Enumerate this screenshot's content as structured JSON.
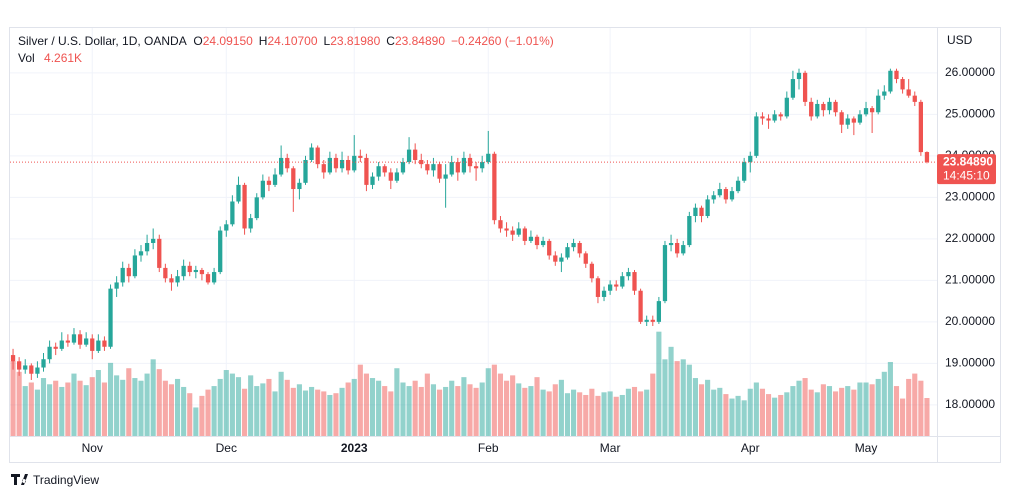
{
  "chart_data": {
    "type": "candlestick",
    "legend": {
      "symbol": "Silver / U.S. Dollar, 1D, OANDA",
      "ohlc": [
        {
          "key": "O",
          "value": "24.09150"
        },
        {
          "key": "H",
          "value": "24.10700"
        },
        {
          "key": "L",
          "value": "23.81980"
        },
        {
          "key": "C",
          "value": "23.84890"
        }
      ],
      "change": "−0.24260 (−1.01%)",
      "volume_key": "Vol",
      "volume_value": "4.261K"
    },
    "currency": "USD",
    "last_price_label": "23.84890",
    "countdown": "14:45:10",
    "up_color": "#26a69a",
    "down_color": "#ef5350",
    "grid": true,
    "ylim": [
      17.25,
      27.08
    ],
    "yticks": [
      {
        "value": 18,
        "label": "18.00000"
      },
      {
        "value": 19,
        "label": "19.00000"
      },
      {
        "value": 20,
        "label": "20.00000"
      },
      {
        "value": 21,
        "label": "21.00000"
      },
      {
        "value": 22,
        "label": "22.00000"
      },
      {
        "value": 23,
        "label": "23.00000"
      },
      {
        "value": 24,
        "label": "24.00000"
      },
      {
        "value": 25,
        "label": "25.00000"
      },
      {
        "value": 26,
        "label": "26.00000"
      }
    ],
    "volume_lim": [
      0,
      12
    ],
    "categories": [
      null,
      null,
      null,
      null,
      null,
      null,
      null,
      null,
      null,
      null,
      null,
      null,
      null,
      "Nov",
      null,
      null,
      null,
      null,
      null,
      null,
      null,
      null,
      null,
      null,
      null,
      null,
      null,
      null,
      null,
      null,
      null,
      null,
      null,
      null,
      null,
      "Dec",
      null,
      null,
      null,
      null,
      null,
      null,
      null,
      null,
      null,
      null,
      null,
      null,
      null,
      null,
      null,
      null,
      null,
      null,
      null,
      null,
      "2023",
      null,
      null,
      null,
      null,
      null,
      null,
      null,
      null,
      null,
      null,
      null,
      null,
      null,
      null,
      null,
      null,
      null,
      null,
      null,
      null,
      null,
      "Feb",
      null,
      null,
      null,
      null,
      null,
      null,
      null,
      null,
      null,
      null,
      null,
      null,
      null,
      null,
      null,
      null,
      null,
      null,
      null,
      "Mar",
      null,
      null,
      null,
      null,
      null,
      null,
      null,
      null,
      null,
      null,
      null,
      null,
      null,
      null,
      null,
      null,
      null,
      null,
      null,
      null,
      null,
      null,
      "Apr",
      null,
      null,
      null,
      null,
      null,
      null,
      null,
      null,
      null,
      null,
      null,
      null,
      null,
      null,
      null,
      null,
      null,
      null,
      "May",
      null,
      null,
      null,
      null,
      null,
      null,
      null,
      null,
      null,
      null
    ],
    "candles": [
      [
        19.2,
        19.35,
        18.85,
        19.05
      ],
      [
        19.05,
        19.15,
        18.7,
        18.85
      ],
      [
        18.85,
        19.1,
        18.75,
        18.95
      ],
      [
        18.95,
        19.0,
        18.6,
        18.75
      ],
      [
        18.75,
        19.05,
        18.65,
        18.9
      ],
      [
        18.9,
        19.25,
        18.8,
        19.1
      ],
      [
        19.1,
        19.55,
        19.0,
        19.4
      ],
      [
        19.4,
        19.5,
        19.2,
        19.35
      ],
      [
        19.35,
        19.75,
        19.3,
        19.55
      ],
      [
        19.55,
        19.7,
        19.4,
        19.5
      ],
      [
        19.5,
        19.85,
        19.45,
        19.7
      ],
      [
        19.7,
        19.8,
        19.35,
        19.45
      ],
      [
        19.45,
        19.75,
        19.4,
        19.6
      ],
      [
        19.6,
        19.7,
        19.1,
        19.3
      ],
      [
        19.3,
        19.7,
        19.25,
        19.55
      ],
      [
        19.55,
        19.65,
        19.3,
        19.4
      ],
      [
        19.4,
        20.9,
        19.35,
        20.8
      ],
      [
        20.8,
        21.1,
        20.6,
        20.95
      ],
      [
        20.95,
        21.45,
        20.85,
        21.3
      ],
      [
        21.3,
        21.4,
        20.95,
        21.1
      ],
      [
        21.1,
        21.75,
        21.05,
        21.6
      ],
      [
        21.6,
        21.85,
        21.45,
        21.7
      ],
      [
        21.7,
        22.1,
        21.6,
        21.9
      ],
      [
        21.9,
        22.25,
        21.75,
        22.0
      ],
      [
        22.0,
        22.1,
        21.2,
        21.3
      ],
      [
        21.3,
        21.4,
        20.95,
        21.05
      ],
      [
        21.05,
        21.15,
        20.75,
        20.95
      ],
      [
        20.95,
        21.25,
        20.85,
        21.1
      ],
      [
        21.1,
        21.5,
        21.0,
        21.35
      ],
      [
        21.35,
        21.45,
        21.1,
        21.2
      ],
      [
        21.2,
        21.35,
        21.05,
        21.25
      ],
      [
        21.25,
        21.3,
        21.0,
        21.15
      ],
      [
        21.15,
        21.2,
        20.9,
        20.95
      ],
      [
        20.95,
        21.3,
        20.9,
        21.2
      ],
      [
        21.2,
        22.3,
        21.15,
        22.2
      ],
      [
        22.2,
        22.45,
        22.05,
        22.35
      ],
      [
        22.35,
        23.05,
        22.3,
        22.9
      ],
      [
        22.9,
        23.5,
        22.85,
        23.3
      ],
      [
        23.3,
        23.35,
        22.1,
        22.25
      ],
      [
        22.25,
        22.6,
        22.15,
        22.5
      ],
      [
        22.5,
        23.1,
        22.45,
        23.0
      ],
      [
        23.0,
        23.55,
        22.95,
        23.4
      ],
      [
        23.4,
        23.5,
        23.15,
        23.3
      ],
      [
        23.3,
        23.7,
        23.25,
        23.55
      ],
      [
        23.55,
        24.25,
        23.5,
        23.95
      ],
      [
        23.95,
        24.05,
        23.6,
        23.7
      ],
      [
        23.7,
        23.75,
        22.65,
        23.2
      ],
      [
        23.2,
        23.45,
        22.95,
        23.35
      ],
      [
        23.35,
        24.0,
        23.3,
        23.9
      ],
      [
        23.9,
        24.3,
        23.85,
        24.2
      ],
      [
        24.2,
        24.25,
        23.7,
        23.8
      ],
      [
        23.8,
        23.9,
        23.45,
        23.6
      ],
      [
        23.6,
        24.1,
        23.55,
        23.95
      ],
      [
        23.95,
        24.05,
        23.6,
        23.7
      ],
      [
        23.7,
        24.1,
        23.6,
        23.9
      ],
      [
        23.9,
        24.0,
        23.55,
        23.65
      ],
      [
        23.65,
        24.5,
        23.6,
        24.0
      ],
      [
        24.0,
        24.15,
        23.85,
        23.95
      ],
      [
        23.95,
        24.05,
        23.15,
        23.3
      ],
      [
        23.3,
        23.6,
        23.2,
        23.5
      ],
      [
        23.5,
        23.85,
        23.4,
        23.75
      ],
      [
        23.75,
        23.8,
        23.5,
        23.6
      ],
      [
        23.6,
        23.7,
        23.2,
        23.4
      ],
      [
        23.4,
        23.7,
        23.35,
        23.6
      ],
      [
        23.6,
        23.95,
        23.55,
        23.85
      ],
      [
        23.85,
        24.45,
        23.8,
        24.15
      ],
      [
        24.15,
        24.3,
        23.8,
        23.9
      ],
      [
        23.9,
        24.05,
        23.7,
        23.8
      ],
      [
        23.8,
        23.9,
        23.55,
        23.65
      ],
      [
        23.65,
        23.95,
        23.5,
        23.8
      ],
      [
        23.8,
        23.85,
        23.35,
        23.45
      ],
      [
        23.45,
        23.8,
        22.75,
        23.55
      ],
      [
        23.55,
        24.0,
        23.5,
        23.85
      ],
      [
        23.85,
        23.95,
        23.4,
        23.6
      ],
      [
        23.6,
        24.1,
        23.55,
        23.95
      ],
      [
        23.95,
        24.05,
        23.6,
        23.75
      ],
      [
        23.75,
        23.85,
        23.4,
        23.7
      ],
      [
        23.7,
        24.0,
        23.6,
        23.85
      ],
      [
        23.85,
        24.6,
        23.8,
        24.05
      ],
      [
        24.05,
        24.1,
        22.35,
        22.45
      ],
      [
        22.45,
        22.55,
        22.15,
        22.25
      ],
      [
        22.25,
        22.4,
        22.05,
        22.2
      ],
      [
        22.2,
        22.3,
        21.95,
        22.1
      ],
      [
        22.1,
        22.4,
        22.05,
        22.25
      ],
      [
        22.25,
        22.3,
        21.85,
        21.95
      ],
      [
        21.95,
        22.2,
        21.9,
        22.05
      ],
      [
        22.05,
        22.1,
        21.75,
        21.85
      ],
      [
        21.85,
        22.05,
        21.8,
        21.95
      ],
      [
        21.95,
        22.0,
        21.5,
        21.6
      ],
      [
        21.6,
        21.7,
        21.35,
        21.45
      ],
      [
        21.45,
        21.65,
        21.2,
        21.55
      ],
      [
        21.55,
        21.9,
        21.5,
        21.8
      ],
      [
        21.8,
        22.0,
        21.7,
        21.9
      ],
      [
        21.9,
        21.95,
        21.55,
        21.65
      ],
      [
        21.65,
        21.7,
        21.3,
        21.4
      ],
      [
        21.4,
        21.45,
        20.95,
        21.05
      ],
      [
        21.05,
        21.1,
        20.45,
        20.6
      ],
      [
        20.6,
        20.85,
        20.5,
        20.75
      ],
      [
        20.75,
        21.0,
        20.65,
        20.9
      ],
      [
        20.9,
        21.0,
        20.75,
        20.85
      ],
      [
        20.85,
        21.2,
        20.8,
        21.1
      ],
      [
        21.1,
        21.3,
        21.0,
        21.2
      ],
      [
        21.2,
        21.25,
        20.65,
        20.75
      ],
      [
        20.75,
        20.8,
        19.95,
        20.0
      ],
      [
        20.0,
        20.15,
        19.9,
        20.05
      ],
      [
        20.05,
        20.15,
        19.9,
        20.0
      ],
      [
        20.0,
        20.6,
        19.95,
        20.5
      ],
      [
        20.5,
        21.95,
        20.45,
        21.85
      ],
      [
        21.85,
        22.1,
        21.7,
        21.9
      ],
      [
        21.9,
        22.0,
        21.55,
        21.65
      ],
      [
        21.65,
        21.95,
        21.6,
        21.85
      ],
      [
        21.85,
        22.65,
        21.8,
        22.55
      ],
      [
        22.55,
        22.85,
        22.4,
        22.75
      ],
      [
        22.75,
        22.8,
        22.4,
        22.55
      ],
      [
        22.55,
        23.05,
        22.5,
        22.95
      ],
      [
        22.95,
        23.15,
        22.85,
        23.05
      ],
      [
        23.05,
        23.35,
        23.0,
        23.2
      ],
      [
        23.2,
        23.25,
        22.85,
        22.95
      ],
      [
        22.95,
        23.25,
        22.9,
        23.15
      ],
      [
        23.15,
        23.5,
        23.1,
        23.4
      ],
      [
        23.4,
        23.95,
        23.35,
        23.85
      ],
      [
        23.85,
        24.1,
        23.6,
        24.0
      ],
      [
        24.0,
        25.05,
        23.95,
        24.95
      ],
      [
        24.95,
        25.05,
        24.75,
        24.9
      ],
      [
        24.9,
        25.0,
        24.65,
        24.85
      ],
      [
        24.85,
        25.1,
        24.8,
        25.0
      ],
      [
        25.0,
        25.05,
        24.85,
        24.95
      ],
      [
        24.95,
        25.55,
        24.9,
        25.4
      ],
      [
        25.4,
        26.05,
        25.35,
        25.85
      ],
      [
        25.85,
        26.1,
        25.6,
        26.0
      ],
      [
        26.0,
        26.05,
        25.2,
        25.3
      ],
      [
        25.3,
        25.4,
        24.85,
        24.95
      ],
      [
        24.95,
        25.35,
        24.9,
        25.25
      ],
      [
        25.25,
        25.3,
        24.95,
        25.1
      ],
      [
        25.1,
        25.4,
        25.0,
        25.3
      ],
      [
        25.3,
        25.35,
        24.95,
        25.05
      ],
      [
        25.05,
        25.1,
        24.55,
        24.75
      ],
      [
        24.75,
        25.0,
        24.65,
        24.9
      ],
      [
        24.9,
        24.95,
        24.5,
        24.8
      ],
      [
        24.8,
        25.1,
        24.75,
        25.0
      ],
      [
        25.0,
        25.3,
        24.95,
        25.15
      ],
      [
        25.15,
        25.2,
        24.55,
        25.05
      ],
      [
        25.05,
        25.6,
        25.0,
        25.45
      ],
      [
        25.45,
        25.7,
        25.35,
        25.55
      ],
      [
        25.55,
        26.1,
        25.5,
        26.05
      ],
      [
        26.05,
        26.1,
        25.75,
        25.85
      ],
      [
        25.85,
        25.9,
        25.5,
        25.6
      ],
      [
        25.6,
        25.85,
        25.4,
        25.45
      ],
      [
        25.45,
        25.55,
        25.2,
        25.3
      ],
      [
        25.3,
        25.35,
        24.0,
        24.09
      ],
      [
        24.0915,
        24.107,
        23.8198,
        23.8489
      ]
    ],
    "volumes": [
      8.4,
      7.2,
      5.6,
      6.0,
      5.2,
      6.5,
      5.8,
      6.2,
      5.5,
      6.0,
      7.0,
      6.2,
      5.7,
      6.6,
      7.4,
      6.0,
      8.2,
      6.8,
      6.3,
      7.6,
      6.5,
      6.2,
      7.0,
      8.6,
      7.5,
      6.2,
      5.8,
      6.4,
      5.5,
      4.8,
      3.2,
      4.5,
      5.2,
      5.6,
      6.4,
      7.4,
      7.0,
      6.6,
      5.3,
      6.8,
      5.6,
      5.9,
      6.4,
      5.0,
      7.2,
      6.3,
      5.4,
      5.8,
      5.1,
      5.5,
      5.2,
      5.0,
      4.6,
      4.8,
      5.4,
      6.0,
      6.4,
      8.0,
      7.0,
      6.5,
      6.2,
      5.6,
      5.0,
      7.6,
      6.0,
      5.6,
      6.2,
      5.5,
      7.0,
      5.8,
      5.2,
      5.5,
      6.2,
      5.6,
      6.6,
      5.8,
      5.4,
      6.0,
      7.6,
      8.0,
      7.0,
      6.2,
      6.8,
      5.9,
      5.4,
      5.6,
      6.6,
      5.2,
      5.0,
      5.8,
      6.3,
      4.8,
      5.2,
      4.9,
      4.6,
      5.3,
      4.5,
      4.9,
      5.0,
      4.4,
      4.6,
      5.3,
      5.5,
      5.0,
      5.2,
      7.0,
      11.7,
      8.6,
      10.0,
      8.4,
      8.6,
      8.0,
      6.5,
      5.8,
      6.3,
      5.2,
      5.4,
      4.7,
      4.2,
      4.5,
      4.0,
      5.3,
      6.0,
      5.3,
      4.7,
      4.3,
      4.6,
      4.9,
      5.6,
      6.2,
      6.5,
      5.2,
      4.9,
      5.8,
      5.6,
      5.0,
      5.4,
      5.6,
      5.2,
      6.0,
      6.0,
      5.8,
      6.4,
      7.2,
      8.3,
      5.6,
      4.2,
      6.4,
      7.0,
      6.2,
      4.261
    ]
  },
  "footer": {
    "brand": "TradingView"
  }
}
